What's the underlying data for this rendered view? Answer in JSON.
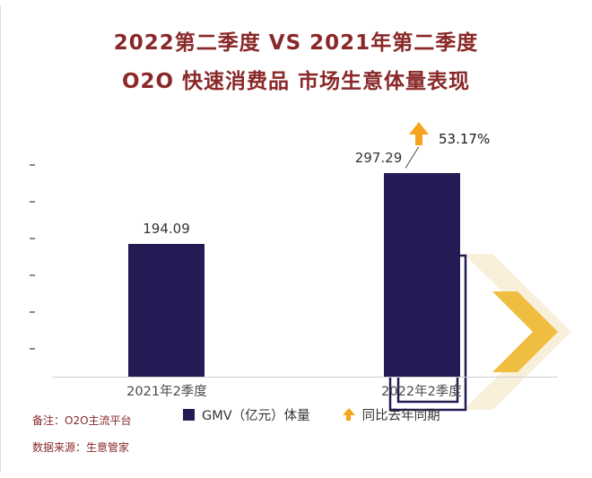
{
  "title": {
    "line1": "2022第二季度 VS 2021年第二季度",
    "line2": "O2O 快速消费品 市场生意体量表现"
  },
  "chart_data": {
    "type": "bar",
    "title": "2022第二季度 VS 2021年第二季度 O2O 快速消费品 市场生意体量表现",
    "categories": [
      "2021年2季度",
      "2022年2季度"
    ],
    "series": [
      {
        "name": "GMV（亿元）体量",
        "values": [
          194.09,
          297.29
        ]
      }
    ],
    "values": [
      194.09,
      297.29
    ],
    "annotation": {
      "growth_text": "53.17%",
      "applies_to": "2022年2季度",
      "direction": "up"
    },
    "legend": [
      {
        "label": "GMV（亿元）体量",
        "marker": "square"
      },
      {
        "label": "同比去年同期",
        "marker": "up-arrow"
      }
    ],
    "legend_position": "bottom",
    "grid": false,
    "ylim": [
      0,
      380
    ],
    "bar_color": "#221B54",
    "accent_color": "#F6A41D"
  },
  "notes": {
    "note1": "备注：O2O主流平台",
    "note2": "数据来源：生意管家"
  },
  "colors": {
    "bar": "#221B54",
    "title_text": "#8A2829",
    "accent_arrow": "#F6A41D",
    "axis": "#CFCFCF",
    "watermark_pale": "#F8F0DB",
    "watermark_amber": "#EFBD3F"
  }
}
